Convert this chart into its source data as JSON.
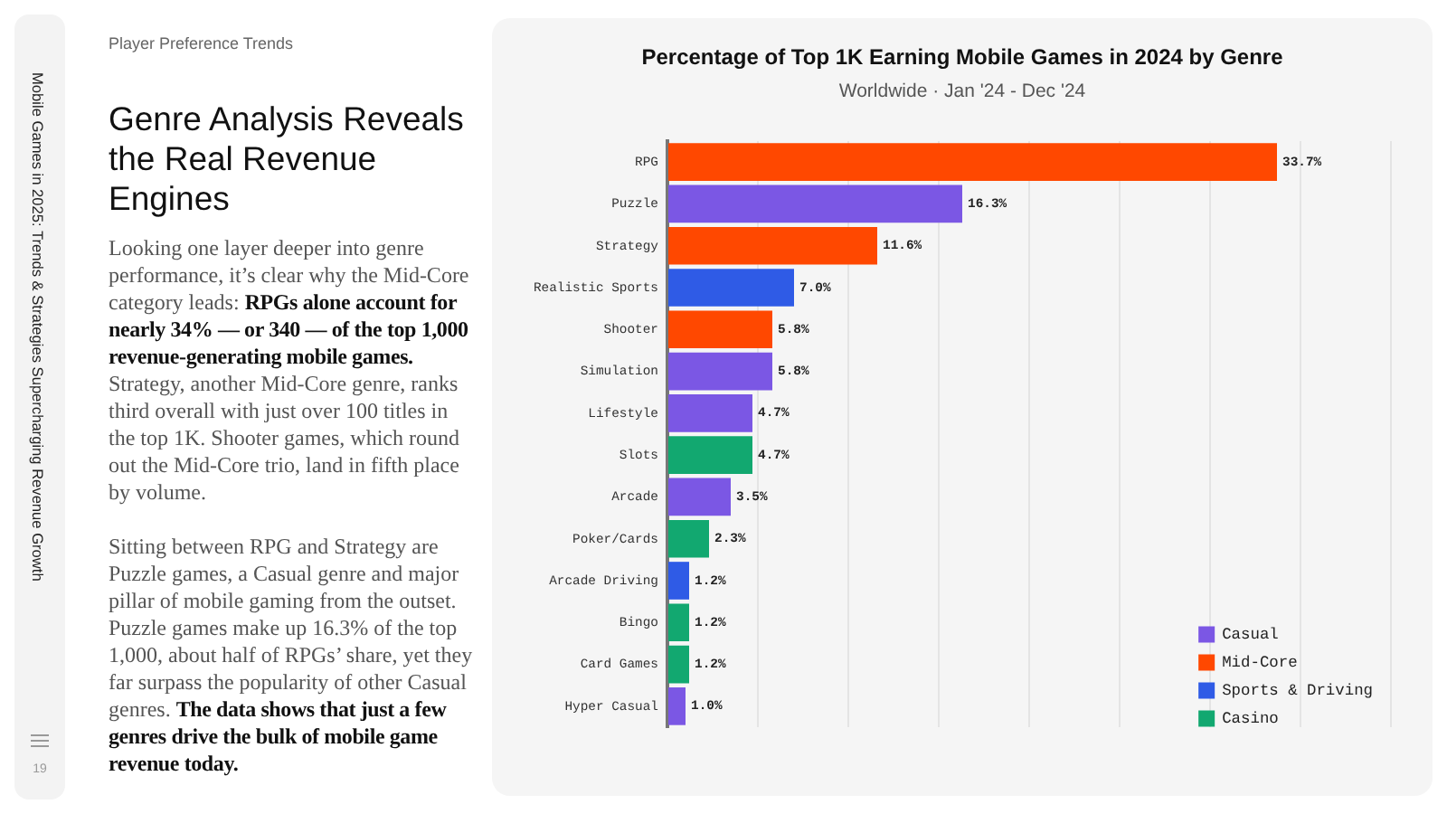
{
  "chart_data": {
    "type": "bar",
    "orientation": "horizontal",
    "title": "Percentage of Top 1K Earning Mobile Games in 2024 by Genre",
    "subtitle": "Worldwide · Jan '24 - Dec '24",
    "categories": [
      "RPG",
      "Puzzle",
      "Strategy",
      "Realistic Sports",
      "Shooter",
      "Simulation",
      "Lifestyle",
      "Slots",
      "Arcade",
      "Poker/Cards",
      "Arcade Driving",
      "Bingo",
      "Card Games",
      "Hyper Casual"
    ],
    "series": [
      {
        "name": "Casual",
        "color": "#7b57e4",
        "values": [
          null,
          16.3,
          null,
          null,
          null,
          5.8,
          4.7,
          null,
          3.5,
          null,
          null,
          null,
          null,
          1.0
        ],
        "value_labels": [
          null,
          "16.3%",
          null,
          null,
          null,
          "5.8%",
          "4.7%",
          null,
          "3.5%",
          null,
          null,
          null,
          null,
          "1.0%"
        ]
      },
      {
        "name": "Mid-Core",
        "color": "#ff4800",
        "values": [
          33.7,
          null,
          11.6,
          null,
          5.8,
          null,
          null,
          null,
          null,
          null,
          null,
          null,
          null,
          null
        ],
        "value_labels": [
          "33.7%",
          null,
          "11.6%",
          null,
          "5.8%",
          null,
          null,
          null,
          null,
          null,
          null,
          null,
          null,
          null
        ]
      },
      {
        "name": "Sports & Driving",
        "color": "#2f5be6",
        "values": [
          null,
          null,
          null,
          7.0,
          null,
          null,
          null,
          null,
          null,
          null,
          1.2,
          null,
          null,
          null
        ],
        "value_labels": [
          null,
          null,
          null,
          "7.0%",
          null,
          null,
          null,
          null,
          null,
          null,
          "1.2%",
          null,
          null,
          null
        ]
      },
      {
        "name": "Casino",
        "color": "#12a870",
        "values": [
          null,
          null,
          null,
          null,
          null,
          null,
          null,
          4.7,
          null,
          2.3,
          null,
          1.2,
          1.2,
          null
        ],
        "value_labels": [
          null,
          null,
          null,
          null,
          null,
          null,
          null,
          "4.7%",
          null,
          "2.3%",
          null,
          "1.2%",
          "1.2%",
          null
        ]
      }
    ],
    "xlim": [
      0,
      40
    ],
    "xticks": [
      {
        "value": 0,
        "label": null
      },
      {
        "value": 5,
        "label": null
      },
      {
        "value": 10,
        "label": null
      },
      {
        "value": 15,
        "label": null
      },
      {
        "value": 20,
        "label": null
      },
      {
        "value": 25,
        "label": null
      },
      {
        "value": 30,
        "label": null
      },
      {
        "value": 35,
        "label": null
      },
      {
        "value": 40,
        "label": null
      }
    ],
    "tick_labels": "y",
    "grid": "x",
    "legend": "bottom right",
    "annotations": [
      "Player Preference Trends",
      "Genre Analysis Reveals the Real Revenue Engines",
      "Looking one layer deeper into genre performance, it’s clear why the Mid-Core",
      "category leads:",
      "RPGs alone account for",
      "nearly 34% — or 340 — of the top 1,000 revenue-generating mobile games.",
      "Strategy, another Mid-Core genre, ranks third overall with just over 100 titles in the top 1K. Shooter games, which round out the Mid-Core trio, land in fifth place by volume.",
      "Sitting between RPG and Strategy are Puzzle games, a Casual genre and major pillar of mobile gaming from the outset. Puzzle games make up 16.3% of the top 1,000, about half of RPGs’ share, yet they far surpass the popularity of other Casual",
      "genres.",
      "The data shows that just a few",
      "genres drive the bulk of mobile game revenue today.",
      "Mobile Games in 2025: Trends & Strategies Supercharging Revenue Growth",
      "19"
    ]
  }
}
